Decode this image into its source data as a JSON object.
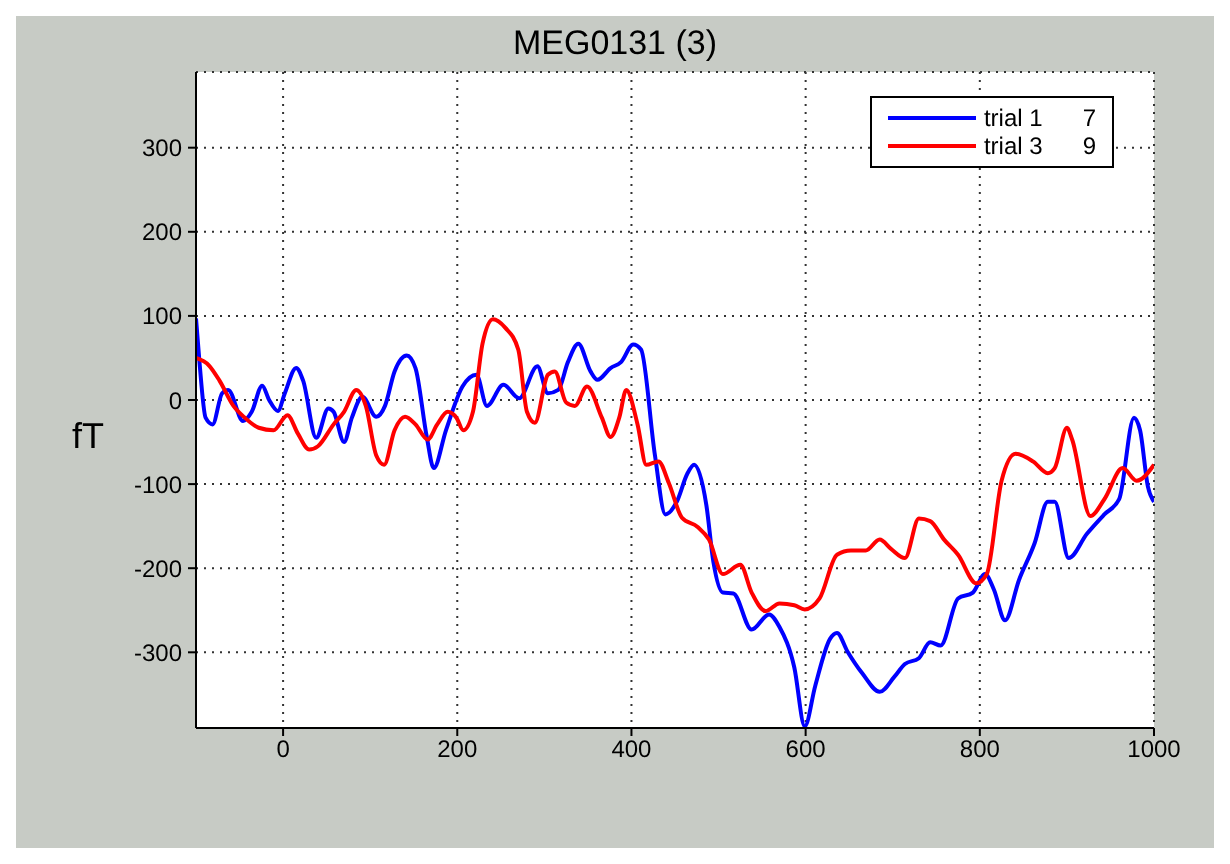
{
  "chart_data": {
    "type": "line",
    "title": "MEG0131 (3)",
    "ylabel": "fT",
    "xlim": [
      -100,
      1000
    ],
    "ylim": [
      -390,
      390
    ],
    "xticks": [
      0,
      200,
      400,
      600,
      800,
      1000
    ],
    "yticks": [
      -300,
      -200,
      -100,
      0,
      100,
      200,
      300
    ],
    "grid": true,
    "legend": "top right",
    "line_style": "solid",
    "marker": "none",
    "series": [
      {
        "name": "trial 1      7",
        "color": "#0000ff",
        "x": [
          -100,
          -96,
          -89,
          -81,
          -70,
          -63,
          -46,
          -36,
          -24,
          -16,
          -6,
          2,
          15,
          23,
          38,
          52,
          58,
          70,
          79,
          91,
          107,
          117,
          128,
          142,
          152,
          165,
          173,
          187,
          206,
          222,
          234,
          253,
          271,
          292,
          304,
          316,
          327,
          339,
          353,
          361,
          376,
          388,
          402,
          411,
          427,
          439,
          452,
          464,
          472,
          486,
          494,
          505,
          517,
          538,
          558,
          570,
          587,
          599,
          611,
          628,
          636,
          648,
          665,
          685,
          702,
          714,
          730,
          743,
          755,
          775,
          792,
          806,
          816,
          829,
          845,
          863,
          878,
          886,
          902,
          923,
          943,
          960,
          977,
          984,
          993,
          1000
        ],
        "values": [
          97,
          45,
          -21,
          -29,
          8,
          12,
          -25,
          -14,
          17,
          0,
          -13,
          8,
          38,
          23,
          -45,
          -10,
          -14,
          -50,
          -21,
          4,
          -20,
          -7,
          34,
          53,
          38,
          -44,
          -81,
          -36,
          16,
          30,
          -7,
          18,
          2,
          40,
          8,
          12,
          45,
          67,
          34,
          24,
          38,
          45,
          66,
          60,
          -66,
          -136,
          -121,
          -88,
          -77,
          -125,
          -192,
          -229,
          -230,
          -273,
          -255,
          -270,
          -318,
          -388,
          -340,
          -284,
          -277,
          -299,
          -325,
          -347,
          -329,
          -314,
          -307,
          -288,
          -292,
          -236,
          -229,
          -207,
          -225,
          -262,
          -214,
          -170,
          -121,
          -121,
          -188,
          -159,
          -136,
          -118,
          -21,
          -36,
          -103,
          -121
        ]
      },
      {
        "name": "trial 3      9",
        "color": "#ff0000",
        "x": [
          -100,
          -85,
          -73,
          -57,
          -44,
          -28,
          -11,
          5,
          17,
          30,
          40,
          58,
          70,
          84,
          95,
          107,
          116,
          128,
          140,
          152,
          166,
          177,
          189,
          199,
          207,
          218,
          229,
          241,
          255,
          270,
          280,
          289,
          304,
          312,
          325,
          335,
          349,
          366,
          376,
          386,
          394,
          407,
          417,
          431,
          443,
          458,
          476,
          489,
          505,
          525,
          538,
          554,
          570,
          587,
          599,
          616,
          636,
          652,
          669,
          685,
          698,
          714,
          730,
          743,
          759,
          775,
          796,
          808,
          825,
          841,
          861,
          878,
          886,
          900,
          906,
          927,
          943,
          964,
          980,
          1000
        ],
        "values": [
          50,
          41,
          23,
          -7,
          -21,
          -33,
          -36,
          -18,
          -40,
          -59,
          -55,
          -29,
          -14,
          12,
          -7,
          -66,
          -77,
          -36,
          -20,
          -29,
          -47,
          -29,
          -14,
          -21,
          -36,
          -14,
          67,
          96,
          86,
          60,
          -14,
          -27,
          30,
          34,
          -3,
          -7,
          16,
          -21,
          -44,
          -21,
          12,
          -29,
          -77,
          -73,
          -99,
          -140,
          -151,
          -166,
          -207,
          -196,
          -229,
          -251,
          -242,
          -244,
          -249,
          -236,
          -184,
          -179,
          -179,
          -166,
          -177,
          -188,
          -141,
          -144,
          -166,
          -184,
          -218,
          -207,
          -96,
          -64,
          -73,
          -87,
          -81,
          -33,
          -47,
          -138,
          -118,
          -81,
          -96,
          -77
        ]
      }
    ]
  }
}
